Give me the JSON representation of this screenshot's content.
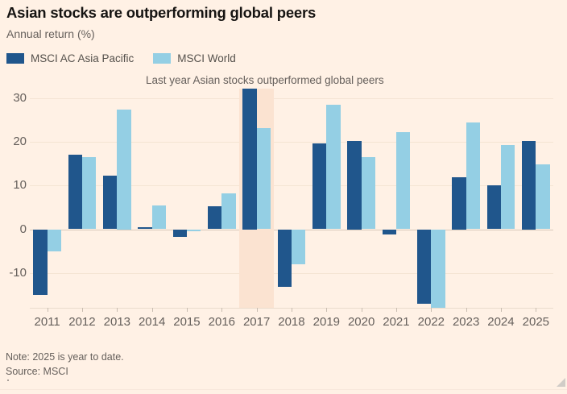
{
  "header": {
    "title": "Asian stocks are outperforming global peers",
    "subtitle": "Annual return (%)"
  },
  "legend": {
    "items": [
      {
        "label": "MSCI AC Asia Pacific",
        "color": "#20568c"
      },
      {
        "label": "MSCI World",
        "color": "#94cfe4"
      }
    ]
  },
  "chart_data": {
    "type": "bar",
    "title": "Asian stocks are outperforming global peers",
    "ylabel": "Annual return (%)",
    "categories": [
      "2011",
      "2012",
      "2013",
      "2014",
      "2015",
      "2016",
      "2017",
      "2018",
      "2019",
      "2020",
      "2021",
      "2022",
      "2023",
      "2024",
      "2025"
    ],
    "series": [
      {
        "name": "MSCI AC Asia Pacific",
        "color": "#20568c",
        "values": [
          -15.0,
          17.1,
          12.3,
          0.4,
          -1.7,
          5.3,
          32.2,
          -13.2,
          19.7,
          20.2,
          -1.2,
          -17.0,
          11.9,
          10.1,
          20.3
        ]
      },
      {
        "name": "MSCI World",
        "color": "#94cfe4",
        "values": [
          -5.0,
          16.5,
          27.5,
          5.5,
          -0.4,
          8.2,
          23.1,
          -8.1,
          28.5,
          16.5,
          22.3,
          -18.0,
          24.4,
          19.2,
          14.8
        ]
      }
    ],
    "yticks": [
      30,
      20,
      10,
      0,
      -10
    ],
    "ylim": [
      -18.0,
      32.2
    ],
    "grid": true,
    "legend_position": "top-left",
    "highlight_category": "2017",
    "annotation": {
      "text": "Last year Asian stocks outperformed global peers",
      "target_category": "2017"
    }
  },
  "footer": {
    "note": "Note: 2025 is year to date.",
    "source": "Source: MSCI"
  },
  "colors": {
    "background": "#fff1e5",
    "highlight_band": "#fbe3d1",
    "gridline": "#f4e4d3",
    "zero_line": "#d9c9ba",
    "axis_line": "#eadccd",
    "tick": "#c9bdb1",
    "text_primary": "#161412",
    "text_secondary": "#66605c"
  }
}
